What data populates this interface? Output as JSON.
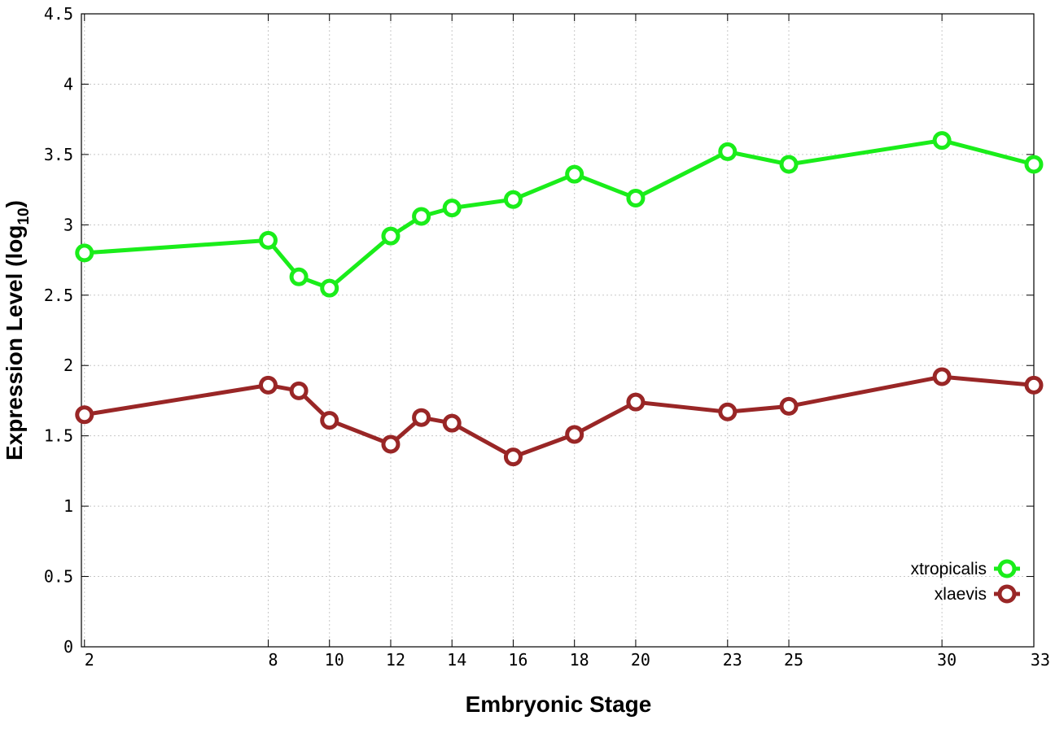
{
  "chart_data": {
    "type": "line",
    "title": "",
    "xlabel": "Embryonic Stage",
    "ylabel": {
      "main": "Expression Level (log",
      "sub": "10",
      "close": ")"
    },
    "xlim": [
      1.9,
      33
    ],
    "ylim": [
      0,
      4.5
    ],
    "x_ticks": [
      2,
      8,
      10,
      12,
      14,
      16,
      18,
      20,
      23,
      25,
      30,
      33
    ],
    "y_ticks": [
      {
        "value": 0,
        "label": "0"
      },
      {
        "value": 0.5,
        "label": "0.5"
      },
      {
        "value": 1,
        "label": "1"
      },
      {
        "value": 1.5,
        "label": "1.5"
      },
      {
        "value": 2,
        "label": "2"
      },
      {
        "value": 2.5,
        "label": "2.5"
      },
      {
        "value": 3,
        "label": "3"
      },
      {
        "value": 3.5,
        "label": "3.5"
      },
      {
        "value": 4,
        "label": "4"
      },
      {
        "value": 4.5,
        "label": "4.5"
      }
    ],
    "grid": true,
    "legend_position": "bottom-right",
    "x": [
      2,
      8,
      9,
      10,
      12,
      13,
      14,
      16,
      18,
      20,
      23,
      25,
      30,
      33
    ],
    "series": [
      {
        "name": "xtropicalis",
        "color": "#1aed1a",
        "values": [
          2.8,
          2.89,
          2.63,
          2.55,
          2.92,
          3.06,
          3.12,
          3.18,
          3.36,
          3.19,
          3.52,
          3.43,
          3.6,
          3.43
        ]
      },
      {
        "name": "xlaevis",
        "color": "#992626",
        "values": [
          1.65,
          1.86,
          1.82,
          1.61,
          1.44,
          1.63,
          1.59,
          1.35,
          1.51,
          1.74,
          1.67,
          1.71,
          1.92,
          1.86
        ]
      }
    ]
  }
}
